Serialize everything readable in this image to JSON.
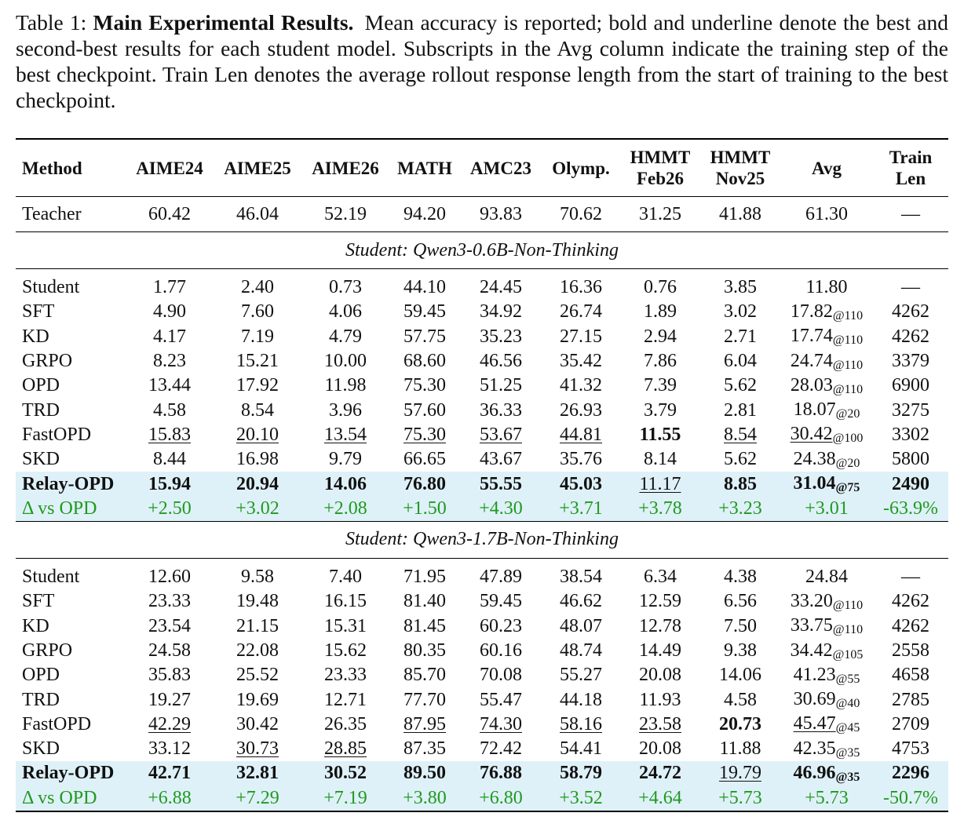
{
  "caption": {
    "label": "Table 1:",
    "title": "Main Experimental Results.",
    "text": "Mean accuracy is reported; bold and underline denote the best and second-best results for each student model. Subscripts in the Avg column indicate the training step of the best checkpoint. Train Len denotes the average rollout response length from the start of training to the best checkpoint."
  },
  "columns": [
    "Method",
    "AIME24",
    "AIME25",
    "AIME26",
    "MATH",
    "AMC23",
    "Olymp.",
    "HMMT Feb26",
    "HMMT Nov25",
    "Avg",
    "Train Len"
  ],
  "teacher": {
    "method": "Teacher",
    "cells": [
      "60.42",
      "46.04",
      "52.19",
      "94.20",
      "93.83",
      "70.62",
      "31.25",
      "41.88",
      "61.30",
      "—"
    ]
  },
  "groups": [
    {
      "title": "Student: Qwen3-0.6B-Non-Thinking",
      "rows": [
        {
          "method": "Student",
          "cells": [
            "1.77",
            "2.40",
            "0.73",
            "44.10",
            "24.45",
            "16.36",
            "0.76",
            "3.85",
            "11.80",
            "—"
          ],
          "avg_step": ""
        },
        {
          "method": "SFT",
          "cells": [
            "4.90",
            "7.60",
            "4.06",
            "59.45",
            "34.92",
            "26.74",
            "1.89",
            "3.02",
            "17.82",
            "4262"
          ],
          "avg_step": "@110"
        },
        {
          "method": "KD",
          "cells": [
            "4.17",
            "7.19",
            "4.79",
            "57.75",
            "35.23",
            "27.15",
            "2.94",
            "2.71",
            "17.74",
            "4262"
          ],
          "avg_step": "@110"
        },
        {
          "method": "GRPO",
          "cells": [
            "8.23",
            "15.21",
            "10.00",
            "68.60",
            "46.56",
            "35.42",
            "7.86",
            "6.04",
            "24.74",
            "3379"
          ],
          "avg_step": "@110"
        },
        {
          "method": "OPD",
          "cells": [
            "13.44",
            "17.92",
            "11.98",
            "75.30",
            "51.25",
            "41.32",
            "7.39",
            "5.62",
            "28.03",
            "6900"
          ],
          "avg_step": "@110"
        },
        {
          "method": "TRD",
          "cells": [
            "4.58",
            "8.54",
            "3.96",
            "57.60",
            "36.33",
            "26.93",
            "3.79",
            "2.81",
            "18.07",
            "3275"
          ],
          "avg_step": "@20"
        },
        {
          "method": "FastOPD",
          "cells": [
            "15.83",
            "20.10",
            "13.54",
            "75.30",
            "53.67",
            "44.81",
            "11.55",
            "8.54",
            "30.42",
            "3302"
          ],
          "avg_step": "@100",
          "underline": [
            0,
            1,
            2,
            3,
            4,
            5,
            7,
            8
          ],
          "bold": [
            6
          ]
        },
        {
          "method": "SKD",
          "cells": [
            "8.44",
            "16.98",
            "9.79",
            "66.65",
            "43.67",
            "35.76",
            "8.14",
            "5.62",
            "24.38",
            "5800"
          ],
          "avg_step": "@20"
        }
      ],
      "relay": {
        "method": "Relay-OPD",
        "cells": [
          "15.94",
          "20.94",
          "14.06",
          "76.80",
          "55.55",
          "45.03",
          "11.17",
          "8.85",
          "31.04",
          "2490"
        ],
        "avg_step": "@75",
        "underline": [
          6
        ]
      },
      "delta": {
        "method": "Δ vs OPD",
        "cells": [
          "+2.50",
          "+3.02",
          "+2.08",
          "+1.50",
          "+4.30",
          "+3.71",
          "+3.78",
          "+3.23",
          "+3.01",
          "-63.9%"
        ]
      }
    },
    {
      "title": "Student: Qwen3-1.7B-Non-Thinking",
      "rows": [
        {
          "method": "Student",
          "cells": [
            "12.60",
            "9.58",
            "7.40",
            "71.95",
            "47.89",
            "38.54",
            "6.34",
            "4.38",
            "24.84",
            "—"
          ],
          "avg_step": ""
        },
        {
          "method": "SFT",
          "cells": [
            "23.33",
            "19.48",
            "16.15",
            "81.40",
            "59.45",
            "46.62",
            "12.59",
            "6.56",
            "33.20",
            "4262"
          ],
          "avg_step": "@110"
        },
        {
          "method": "KD",
          "cells": [
            "23.54",
            "21.15",
            "15.31",
            "81.45",
            "60.23",
            "48.07",
            "12.78",
            "7.50",
            "33.75",
            "4262"
          ],
          "avg_step": "@110"
        },
        {
          "method": "GRPO",
          "cells": [
            "24.58",
            "22.08",
            "15.62",
            "80.35",
            "60.16",
            "48.74",
            "14.49",
            "9.38",
            "34.42",
            "2558"
          ],
          "avg_step": "@105"
        },
        {
          "method": "OPD",
          "cells": [
            "35.83",
            "25.52",
            "23.33",
            "85.70",
            "70.08",
            "55.27",
            "20.08",
            "14.06",
            "41.23",
            "4658"
          ],
          "avg_step": "@55"
        },
        {
          "method": "TRD",
          "cells": [
            "19.27",
            "19.69",
            "12.71",
            "77.70",
            "55.47",
            "44.18",
            "11.93",
            "4.58",
            "30.69",
            "2785"
          ],
          "avg_step": "@40"
        },
        {
          "method": "FastOPD",
          "cells": [
            "42.29",
            "30.42",
            "26.35",
            "87.95",
            "74.30",
            "58.16",
            "23.58",
            "20.73",
            "45.47",
            "2709"
          ],
          "avg_step": "@45",
          "underline": [
            0,
            3,
            4,
            5,
            6,
            8
          ],
          "bold": [
            7
          ]
        },
        {
          "method": "SKD",
          "cells": [
            "33.12",
            "30.73",
            "28.85",
            "87.35",
            "72.42",
            "54.41",
            "20.08",
            "11.88",
            "42.35",
            "4753"
          ],
          "avg_step": "@35",
          "underline": [
            1,
            2
          ]
        }
      ],
      "relay": {
        "method": "Relay-OPD",
        "cells": [
          "42.71",
          "32.81",
          "30.52",
          "89.50",
          "76.88",
          "58.79",
          "24.72",
          "19.79",
          "46.96",
          "2296"
        ],
        "avg_step": "@35",
        "underline": [
          7
        ]
      },
      "delta": {
        "method": "Δ vs OPD",
        "cells": [
          "+6.88",
          "+7.29",
          "+7.19",
          "+3.80",
          "+6.80",
          "+3.52",
          "+4.64",
          "+5.73",
          "+5.73",
          "-50.7%"
        ]
      }
    }
  ],
  "colors": {
    "highlight_row": "#dff1f8",
    "delta_text": "#1f9a1f"
  }
}
